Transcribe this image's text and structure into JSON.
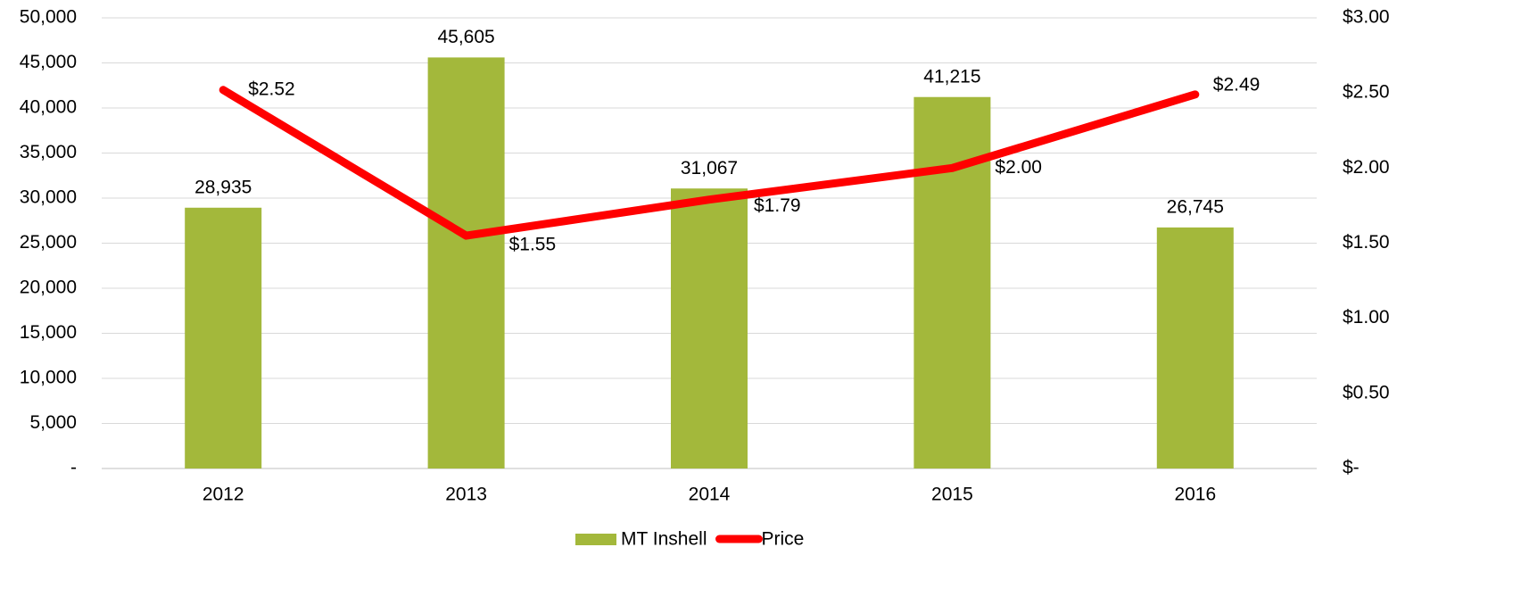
{
  "chart_data": {
    "type": "bar",
    "categories": [
      "2012",
      "2013",
      "2014",
      "2015",
      "2016"
    ],
    "series": [
      {
        "name": "MT Inshell",
        "color": "#a3b83b",
        "values": [
          28935,
          45605,
          31067,
          41215,
          26745
        ],
        "value_labels": [
          "28,935",
          "45,605",
          "31,067",
          "41,215",
          "26,745"
        ]
      },
      {
        "name": "Price",
        "color": "#ff0000",
        "type": "line",
        "axis": "y2",
        "values": [
          2.52,
          1.55,
          1.79,
          2.0,
          2.49
        ],
        "value_labels": [
          "$2.52",
          "$1.55",
          "$1.79",
          "$2.00",
          "$2.49"
        ]
      }
    ],
    "ylim": [
      0,
      50000
    ],
    "yticks": [
      {
        "value": 0,
        "label": "-"
      },
      {
        "value": 5000,
        "label": "5,000"
      },
      {
        "value": 10000,
        "label": "10,000"
      },
      {
        "value": 15000,
        "label": "15,000"
      },
      {
        "value": 20000,
        "label": "20,000"
      },
      {
        "value": 25000,
        "label": "25,000"
      },
      {
        "value": 30000,
        "label": "30,000"
      },
      {
        "value": 35000,
        "label": "35,000"
      },
      {
        "value": 40000,
        "label": "40,000"
      },
      {
        "value": 45000,
        "label": "45,000"
      },
      {
        "value": 50000,
        "label": "50,000"
      }
    ],
    "y2lim": [
      0,
      3
    ],
    "y2ticks": [
      {
        "value": 0,
        "label": "$-"
      },
      {
        "value": 0.5,
        "label": "$0.50"
      },
      {
        "value": 1,
        "label": "$1.00"
      },
      {
        "value": 1.5,
        "label": "$1.50"
      },
      {
        "value": 2,
        "label": "$2.00"
      },
      {
        "value": 2.5,
        "label": "$2.50"
      },
      {
        "value": 3,
        "label": "$3.00"
      }
    ],
    "grid": true,
    "legend": "bottom"
  }
}
